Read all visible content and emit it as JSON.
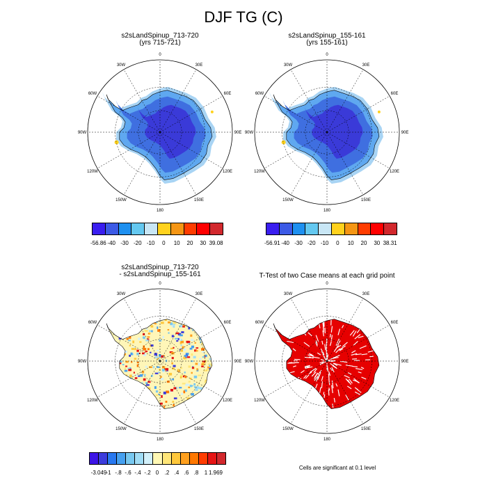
{
  "title": "DJF TG (C)",
  "colors": {
    "ice_deep": "#3a3ad8",
    "ice_mid": "#3f6fe0",
    "ice_light": "#5fa8f0",
    "ice_pale": "#a8d4f4",
    "diff_base": "#fff6b8",
    "sig_red": "#e60000"
  },
  "panels": [
    {
      "id": "panel-1",
      "title_line1": "s2sLandSpinup_713-720",
      "title_line2": "(yrs 715-721)",
      "lon_labels": [
        "0",
        "30E",
        "60E",
        "90E",
        "120E",
        "150E",
        "180",
        "150W",
        "120W",
        "90W",
        "60W",
        "30W"
      ]
    },
    {
      "id": "panel-2",
      "title_line1": "s2sLandSpinup_155-161",
      "title_line2": "(yrs 155-161)",
      "lon_labels": [
        "0",
        "30E",
        "60E",
        "90E",
        "120E",
        "150E",
        "180",
        "150W",
        "120W",
        "90W",
        "60W",
        "30W"
      ]
    },
    {
      "id": "panel-3",
      "title_line1": "s2sLandSpinup_713-720",
      "title_line2": "- s2sLandSpinup_155-161",
      "lon_labels": [
        "0",
        "30E",
        "60E",
        "90E",
        "120E",
        "150E",
        "180",
        "150W",
        "120W",
        "90W",
        "60W",
        "30W"
      ]
    },
    {
      "id": "panel-4",
      "title_line1": "T-Test of two Case means at each grid point",
      "title_line2": "",
      "lon_labels": [
        "0",
        "30E",
        "60E",
        "90E",
        "120E",
        "150E",
        "180",
        "150W",
        "120W",
        "90W",
        "60W",
        "30W"
      ]
    }
  ],
  "colorbars": [
    {
      "id": "colorbar-1",
      "colors": [
        "#3a1ef0",
        "#3c5ae6",
        "#1e90f0",
        "#64c8f0",
        "#c8e6f5",
        "#ffd21e",
        "#f59614",
        "#ff3c00",
        "#ff0000",
        "#d2282d"
      ],
      "labels": [
        "-56.86",
        "-40",
        "-30",
        "-20",
        "-10",
        "0",
        "10",
        "20",
        "30",
        "39.08"
      ]
    },
    {
      "id": "colorbar-2",
      "colors": [
        "#3a1ef0",
        "#3c5ae6",
        "#1e90f0",
        "#64c8f0",
        "#c8e6f5",
        "#ffd21e",
        "#f59614",
        "#ff3c00",
        "#ff0000",
        "#d2282d"
      ],
      "labels": [
        "-56.91",
        "-40",
        "-30",
        "-20",
        "-10",
        "0",
        "10",
        "20",
        "30",
        "38.31"
      ]
    },
    {
      "id": "colorbar-3",
      "colors": [
        "#3c14e6",
        "#3c3cdc",
        "#2878f0",
        "#46a0f0",
        "#78c8f0",
        "#a0dcf5",
        "#d2f0fa",
        "#fff8b4",
        "#ffe678",
        "#ffc83c",
        "#ffa01e",
        "#ff7800",
        "#ff3c00",
        "#e61414",
        "#d2282d"
      ],
      "labels": [
        "-3.049",
        "-1",
        "-.8",
        "-.6",
        "-.4",
        "-.2",
        "0",
        ".2",
        ".4",
        ".6",
        ".8",
        "1",
        "1.969"
      ]
    }
  ],
  "significance_note": "Cells are significant at 0.1 level",
  "chart_data": [
    {
      "type": "heatmap",
      "projection": "south polar stereographic",
      "title": "s2sLandSpinup_713-720",
      "subtitle": "(yrs 715-721)",
      "variable": "DJF TG (C)",
      "range": [
        -56.86,
        39.08
      ],
      "levels": [
        -40,
        -30,
        -20,
        -10,
        0,
        10,
        20,
        30
      ]
    },
    {
      "type": "heatmap",
      "projection": "south polar stereographic",
      "title": "s2sLandSpinup_155-161",
      "subtitle": "(yrs 155-161)",
      "variable": "DJF TG (C)",
      "range": [
        -56.91,
        38.31
      ],
      "levels": [
        -40,
        -30,
        -20,
        -10,
        0,
        10,
        20,
        30
      ]
    },
    {
      "type": "heatmap",
      "projection": "south polar stereographic",
      "title": "s2sLandSpinup_713-720",
      "subtitle": "- s2sLandSpinup_155-161",
      "range": [
        -3.049,
        1.969
      ],
      "levels": [
        -1,
        -0.8,
        -0.6,
        -0.4,
        -0.2,
        0,
        0.2,
        0.4,
        0.6,
        0.8,
        1
      ]
    },
    {
      "type": "heatmap",
      "projection": "south polar stereographic",
      "title": "T-Test of two Case means at each grid point",
      "note": "Cells are significant at 0.1 level"
    }
  ]
}
